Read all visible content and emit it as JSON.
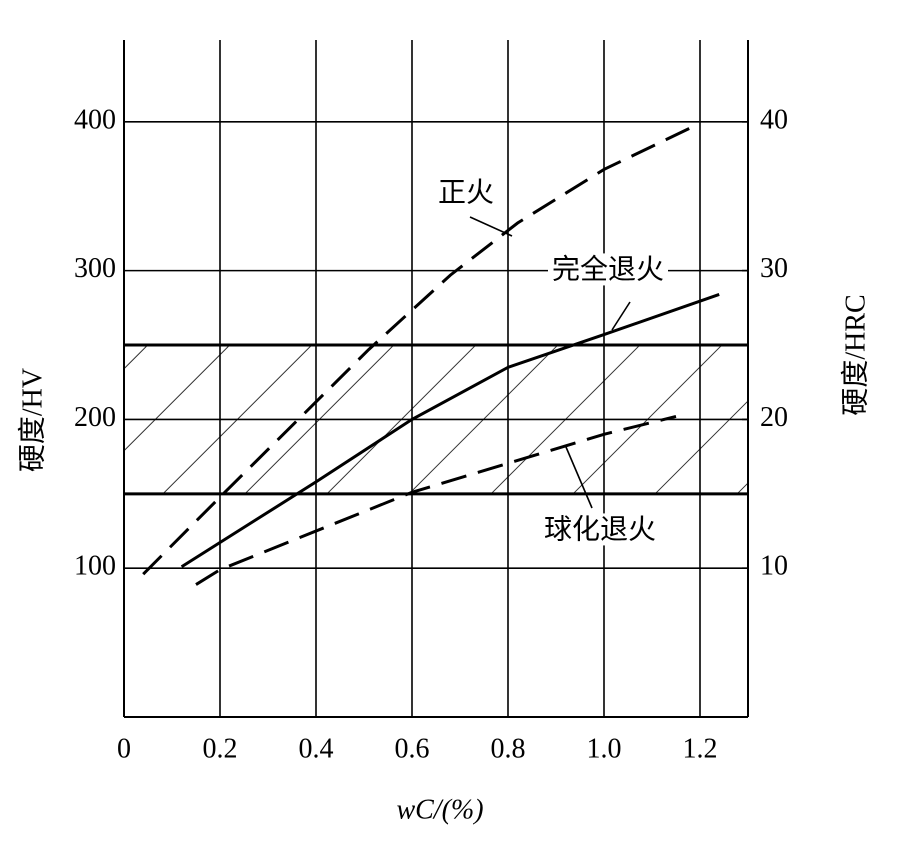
{
  "chart_data": {
    "type": "line",
    "xlabel": "wC/(%)",
    "ylabel": "硬度/HV",
    "y2label": "硬度/HRC",
    "xlim": [
      0,
      1.3
    ],
    "xticks": [
      0,
      0.2,
      0.4,
      0.6,
      0.8,
      {
        "value": 1,
        "label": "1.0"
      },
      1.2
    ],
    "ylim": [
      0,
      455
    ],
    "yticks": [
      100,
      200,
      300,
      400
    ],
    "y2lim": [
      0,
      45.5
    ],
    "y2ticks": [
      10,
      20,
      30,
      40
    ],
    "grid": true,
    "band": [
      150,
      250
    ],
    "series": [
      {
        "name": "正火",
        "color": "#000000",
        "dashed": true,
        "x": [
          0.04,
          0.21,
          0.51,
          0.68,
          0.82,
          1.0,
          1.2
        ],
        "values": [
          96,
          151,
          247,
          297,
          332,
          368,
          399
        ]
      },
      {
        "name": "完全退火",
        "color": "#000000",
        "dashed": false,
        "x": [
          0.12,
          0.4,
          0.6,
          0.8,
          1.0,
          1.24
        ],
        "values": [
          101,
          158,
          200,
          235,
          257,
          284
        ]
      },
      {
        "name": "球化退火",
        "color": "#000000",
        "dashed": true,
        "x": [
          0.15,
          0.2,
          0.6,
          1.0,
          1.15
        ],
        "values": [
          89,
          99,
          151,
          190,
          202
        ]
      }
    ]
  }
}
